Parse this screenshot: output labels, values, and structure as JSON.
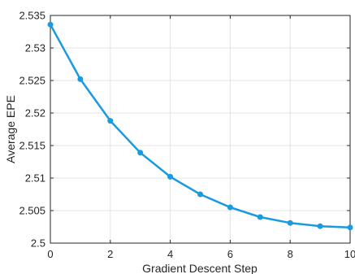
{
  "chart_data": {
    "type": "line",
    "title": "",
    "xlabel": "Gradient Descent Step",
    "ylabel": "Average EPE",
    "xlim": [
      0,
      10
    ],
    "ylim": [
      2.5,
      2.535
    ],
    "xticks": [
      0,
      2,
      4,
      6,
      8,
      10
    ],
    "xtick_labels": [
      "0",
      "2",
      "4",
      "6",
      "8",
      "10"
    ],
    "yticks": [
      2.5,
      2.505,
      2.51,
      2.515,
      2.52,
      2.525,
      2.53,
      2.535
    ],
    "ytick_labels": [
      "2.5",
      "2.505",
      "2.51",
      "2.515",
      "2.52",
      "2.525",
      "2.53",
      "2.535"
    ],
    "grid": true,
    "color": "#1a9ae0",
    "series": [
      {
        "x": [
          0,
          1,
          2,
          3,
          4,
          5,
          6,
          7,
          8,
          9,
          10
        ],
        "y": [
          2.5336,
          2.5252,
          2.5188,
          2.5139,
          2.5102,
          2.5075,
          2.5055,
          2.504,
          2.5031,
          2.5026,
          2.5024
        ]
      }
    ]
  }
}
